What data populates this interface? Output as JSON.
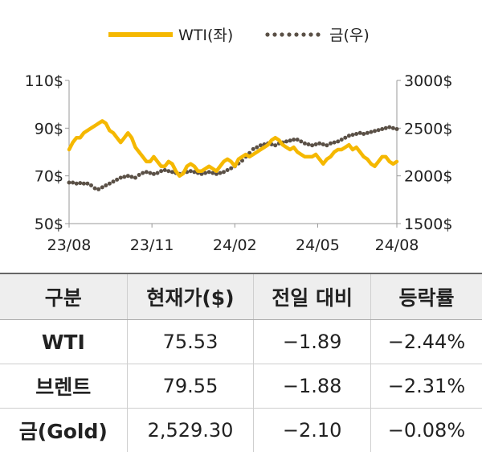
{
  "chart_data": {
    "type": "line",
    "legend": [
      {
        "name": "WTI(좌)",
        "color": "#F5B800",
        "style": "solid"
      },
      {
        "name": "금(우)",
        "color": "#5a5046",
        "style": "dotted"
      }
    ],
    "x_ticks": [
      "23/08",
      "23/11",
      "24/02",
      "24/05",
      "24/08"
    ],
    "left_axis": {
      "ticks": [
        "110$",
        "90$",
        "70$",
        "50$"
      ],
      "range": [
        50,
        110
      ]
    },
    "right_axis": {
      "ticks": [
        "3000$",
        "2500$",
        "2000$",
        "1500$"
      ],
      "range": [
        1500,
        3000
      ]
    },
    "series": [
      {
        "name": "WTI(좌)",
        "axis": "left",
        "color": "#F5B800",
        "style": "solid",
        "values": [
          [
            0,
            81
          ],
          [
            1,
            84
          ],
          [
            2,
            86
          ],
          [
            3,
            86
          ],
          [
            4,
            88
          ],
          [
            5,
            89
          ],
          [
            6,
            90
          ],
          [
            7,
            91
          ],
          [
            8,
            92
          ],
          [
            9,
            93
          ],
          [
            10,
            92
          ],
          [
            11,
            89
          ],
          [
            12,
            88
          ],
          [
            13,
            86
          ],
          [
            14,
            84
          ],
          [
            15,
            86
          ],
          [
            16,
            88
          ],
          [
            17,
            86
          ],
          [
            18,
            82
          ],
          [
            19,
            80
          ],
          [
            20,
            78
          ],
          [
            21,
            76
          ],
          [
            22,
            76
          ],
          [
            23,
            78
          ],
          [
            24,
            76
          ],
          [
            25,
            74
          ],
          [
            26,
            74
          ],
          [
            27,
            76
          ],
          [
            28,
            75
          ],
          [
            29,
            72
          ],
          [
            30,
            70
          ],
          [
            31,
            71
          ],
          [
            32,
            74
          ],
          [
            33,
            75
          ],
          [
            34,
            74
          ],
          [
            35,
            72
          ],
          [
            36,
            72
          ],
          [
            37,
            73
          ],
          [
            38,
            74
          ],
          [
            39,
            73
          ],
          [
            40,
            72
          ],
          [
            41,
            74
          ],
          [
            42,
            76
          ],
          [
            43,
            77
          ],
          [
            44,
            76
          ],
          [
            45,
            74
          ],
          [
            46,
            77
          ],
          [
            47,
            78
          ],
          [
            48,
            79
          ],
          [
            49,
            78
          ],
          [
            50,
            79
          ],
          [
            51,
            80
          ],
          [
            52,
            81
          ],
          [
            53,
            82
          ],
          [
            54,
            83
          ],
          [
            55,
            85
          ],
          [
            56,
            86
          ],
          [
            57,
            85
          ],
          [
            58,
            83
          ],
          [
            59,
            82
          ],
          [
            60,
            81
          ],
          [
            61,
            82
          ],
          [
            62,
            80
          ],
          [
            63,
            79
          ],
          [
            64,
            78
          ],
          [
            65,
            78
          ],
          [
            66,
            78
          ],
          [
            67,
            79
          ],
          [
            68,
            77
          ],
          [
            69,
            75
          ],
          [
            70,
            77
          ],
          [
            71,
            78
          ],
          [
            72,
            80
          ],
          [
            73,
            81
          ],
          [
            74,
            81
          ],
          [
            75,
            82
          ],
          [
            76,
            83
          ],
          [
            77,
            81
          ],
          [
            78,
            82
          ],
          [
            79,
            80
          ],
          [
            80,
            78
          ],
          [
            81,
            77
          ],
          [
            82,
            75
          ],
          [
            83,
            74
          ],
          [
            84,
            76
          ],
          [
            85,
            78
          ],
          [
            86,
            78
          ],
          [
            87,
            76
          ],
          [
            88,
            75
          ],
          [
            89,
            76
          ]
        ]
      },
      {
        "name": "금(우)",
        "axis": "right",
        "color": "#5a5046",
        "style": "dotted",
        "values": [
          [
            0,
            1930
          ],
          [
            1,
            1930
          ],
          [
            2,
            1920
          ],
          [
            3,
            1925
          ],
          [
            4,
            1920
          ],
          [
            5,
            1920
          ],
          [
            6,
            1900
          ],
          [
            7,
            1870
          ],
          [
            8,
            1860
          ],
          [
            9,
            1880
          ],
          [
            10,
            1900
          ],
          [
            11,
            1920
          ],
          [
            12,
            1940
          ],
          [
            13,
            1960
          ],
          [
            14,
            1980
          ],
          [
            15,
            1990
          ],
          [
            16,
            2000
          ],
          [
            17,
            1990
          ],
          [
            18,
            1980
          ],
          [
            19,
            2010
          ],
          [
            20,
            2030
          ],
          [
            21,
            2040
          ],
          [
            22,
            2030
          ],
          [
            23,
            2020
          ],
          [
            24,
            2030
          ],
          [
            25,
            2050
          ],
          [
            26,
            2060
          ],
          [
            27,
            2050
          ],
          [
            28,
            2040
          ],
          [
            29,
            2030
          ],
          [
            30,
            2020
          ],
          [
            31,
            2030
          ],
          [
            32,
            2040
          ],
          [
            33,
            2050
          ],
          [
            34,
            2040
          ],
          [
            35,
            2030
          ],
          [
            36,
            2020
          ],
          [
            37,
            2030
          ],
          [
            38,
            2040
          ],
          [
            39,
            2030
          ],
          [
            40,
            2020
          ],
          [
            41,
            2030
          ],
          [
            42,
            2040
          ],
          [
            43,
            2060
          ],
          [
            44,
            2080
          ],
          [
            45,
            2100
          ],
          [
            46,
            2130
          ],
          [
            47,
            2160
          ],
          [
            48,
            2200
          ],
          [
            49,
            2240
          ],
          [
            50,
            2280
          ],
          [
            51,
            2300
          ],
          [
            52,
            2320
          ],
          [
            53,
            2330
          ],
          [
            54,
            2340
          ],
          [
            55,
            2330
          ],
          [
            56,
            2320
          ],
          [
            57,
            2340
          ],
          [
            58,
            2350
          ],
          [
            59,
            2360
          ],
          [
            60,
            2370
          ],
          [
            61,
            2380
          ],
          [
            62,
            2380
          ],
          [
            63,
            2360
          ],
          [
            64,
            2340
          ],
          [
            65,
            2330
          ],
          [
            66,
            2320
          ],
          [
            67,
            2330
          ],
          [
            68,
            2340
          ],
          [
            69,
            2330
          ],
          [
            70,
            2320
          ],
          [
            71,
            2340
          ],
          [
            72,
            2350
          ],
          [
            73,
            2360
          ],
          [
            74,
            2380
          ],
          [
            75,
            2400
          ],
          [
            76,
            2420
          ],
          [
            77,
            2430
          ],
          [
            78,
            2440
          ],
          [
            79,
            2450
          ],
          [
            80,
            2440
          ],
          [
            81,
            2450
          ],
          [
            82,
            2460
          ],
          [
            83,
            2470
          ],
          [
            84,
            2480
          ],
          [
            85,
            2490
          ],
          [
            86,
            2500
          ],
          [
            87,
            2510
          ],
          [
            88,
            2500
          ],
          [
            89,
            2490
          ]
        ]
      }
    ]
  },
  "table": {
    "headers": [
      "구분",
      "현재가($)",
      "전일 대비",
      "등락률"
    ],
    "rows": [
      [
        "WTI",
        "75.53",
        "−1.89",
        "−2.44%"
      ],
      [
        "브렌트",
        "79.55",
        "−1.88",
        "−2.31%"
      ],
      [
        "금(Gold)",
        "2,529.30",
        "−2.10",
        "−0.08%"
      ]
    ]
  }
}
